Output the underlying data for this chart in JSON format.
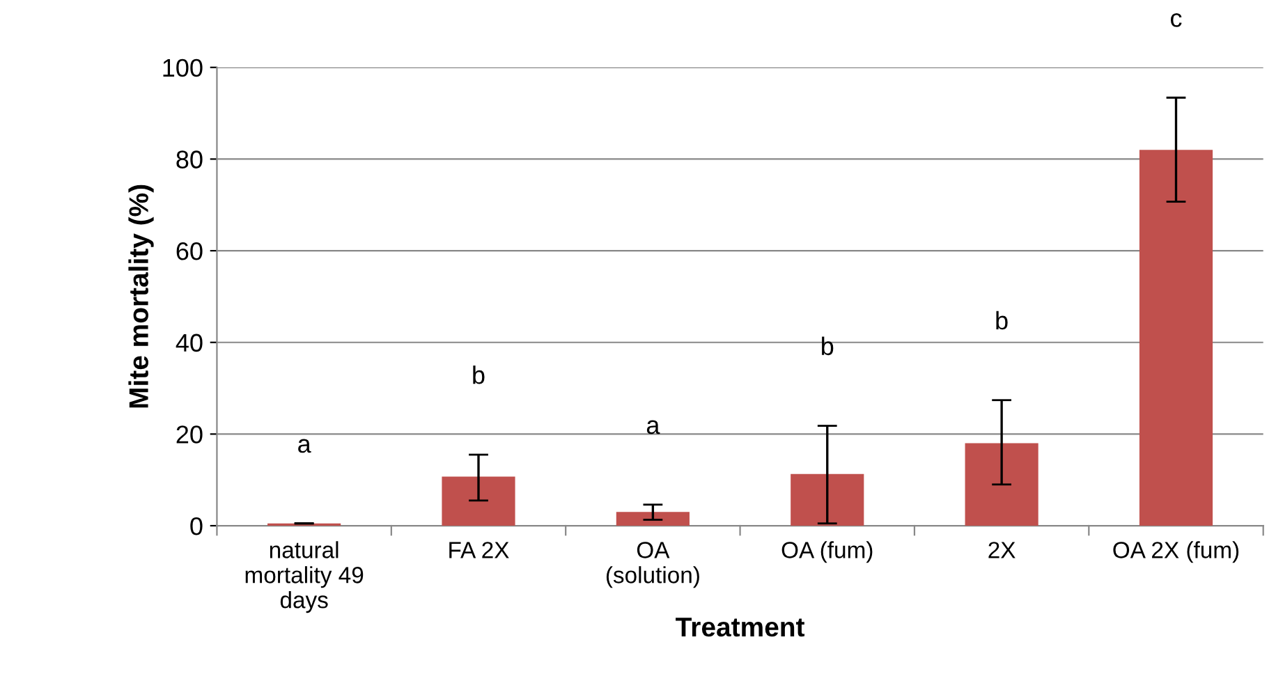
{
  "chart_data": {
    "type": "bar",
    "xlabel": "Treatment",
    "ylabel": "Mite mortality (%)",
    "categories": [
      "natural mortality 49 days",
      "FA 2X",
      "OA (solution)",
      "OA (fum)",
      "2X",
      "OA 2X (fum)"
    ],
    "values": [
      0.5,
      10.7,
      3,
      11.3,
      18,
      82
    ],
    "errors": [
      null,
      [
        5.5,
        15.5
      ],
      [
        1.3,
        4.6
      ],
      [
        0.5,
        21.8
      ],
      [
        9,
        27.4
      ],
      [
        70.7,
        93.4
      ]
    ],
    "color": "#c0504d",
    "ylim": [
      0,
      100
    ],
    "yticks": [
      0,
      20,
      40,
      60,
      80,
      100
    ],
    "grid": "y",
    "annotations": [
      "a",
      "b",
      "a",
      "b",
      "b",
      "c"
    ]
  }
}
